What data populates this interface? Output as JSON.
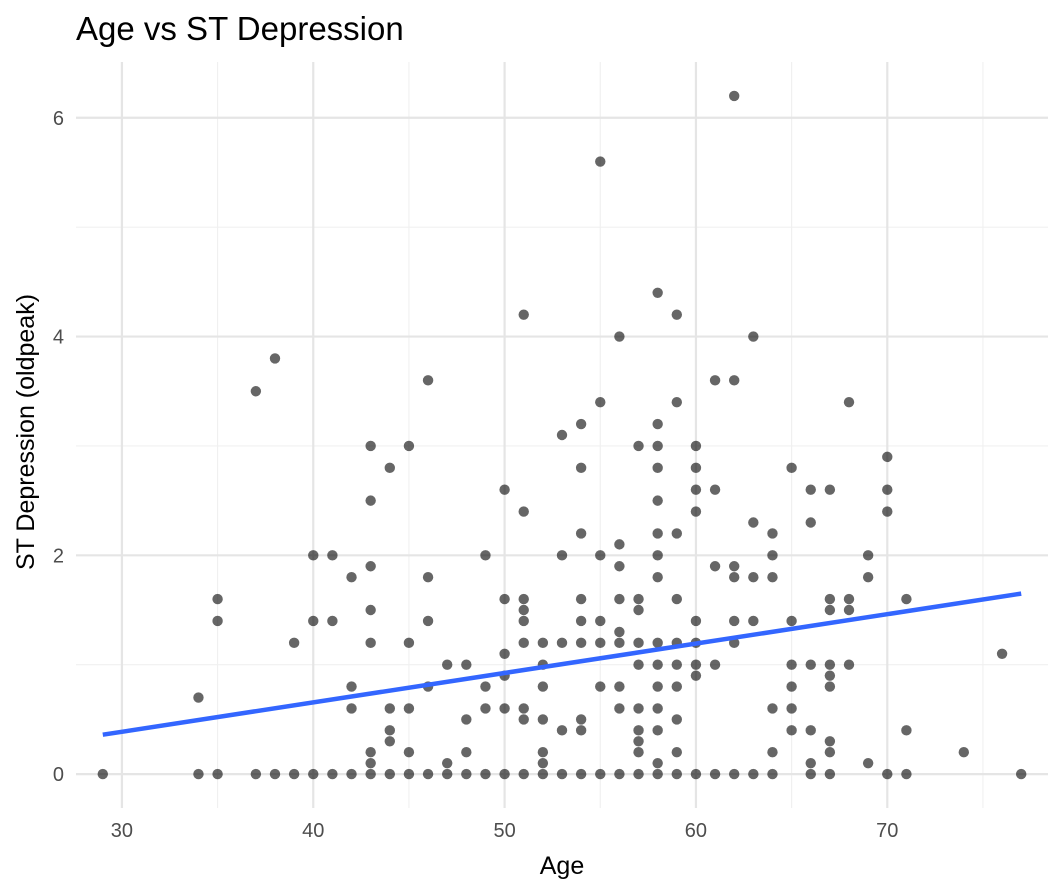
{
  "chart_data": {
    "type": "scatter",
    "title": "Age vs ST Depression",
    "xlabel": "Age",
    "ylabel": "ST Depression (oldpeak)",
    "xlim": [
      27.6,
      78.4
    ],
    "ylim": [
      -0.31,
      6.51
    ],
    "x_ticks": [
      30,
      40,
      50,
      60,
      70
    ],
    "y_ticks": [
      0,
      2,
      4,
      6
    ],
    "x_minor_ticks": [
      35,
      45,
      55,
      65,
      75
    ],
    "y_minor_ticks": [
      1,
      3,
      5
    ],
    "grid": true,
    "legend": "none",
    "point_color": "#000000",
    "point_alpha": 0.6,
    "trend_color": "#3366FF",
    "trend_line": {
      "type": "linear",
      "x": [
        29,
        77
      ],
      "y": [
        0.36,
        1.65
      ]
    },
    "points": [
      [
        29,
        0
      ],
      [
        34,
        0
      ],
      [
        35,
        0
      ],
      [
        37,
        0
      ],
      [
        38,
        0
      ],
      [
        39,
        0
      ],
      [
        40,
        0
      ],
      [
        41,
        0
      ],
      [
        42,
        0
      ],
      [
        43,
        0
      ],
      [
        44,
        0
      ],
      [
        45,
        0
      ],
      [
        46,
        0
      ],
      [
        47,
        0
      ],
      [
        48,
        0
      ],
      [
        49,
        0
      ],
      [
        50,
        0
      ],
      [
        51,
        0
      ],
      [
        52,
        0
      ],
      [
        53,
        0
      ],
      [
        54,
        0
      ],
      [
        55,
        0
      ],
      [
        56,
        0
      ],
      [
        57,
        0
      ],
      [
        58,
        0
      ],
      [
        59,
        0
      ],
      [
        60,
        0
      ],
      [
        61,
        0
      ],
      [
        62,
        0
      ],
      [
        63,
        0
      ],
      [
        64,
        0
      ],
      [
        66,
        0
      ],
      [
        67,
        0
      ],
      [
        70,
        0
      ],
      [
        71,
        0
      ],
      [
        77,
        0
      ],
      [
        34,
        0.7
      ],
      [
        35,
        1.6
      ],
      [
        35,
        1.4
      ],
      [
        37,
        3.5
      ],
      [
        38,
        3.8
      ],
      [
        39,
        1.2
      ],
      [
        40,
        2.0
      ],
      [
        40,
        1.4
      ],
      [
        41,
        2.0
      ],
      [
        41,
        1.4
      ],
      [
        42,
        1.8
      ],
      [
        42,
        0.8
      ],
      [
        42,
        0.6
      ],
      [
        43,
        3.0
      ],
      [
        43,
        2.5
      ],
      [
        43,
        1.9
      ],
      [
        43,
        1.5
      ],
      [
        43,
        1.2
      ],
      [
        43,
        0.2
      ],
      [
        43,
        0.1
      ],
      [
        44,
        2.8
      ],
      [
        44,
        0.6
      ],
      [
        44,
        0.4
      ],
      [
        44,
        0.3
      ],
      [
        45,
        3.0
      ],
      [
        45,
        1.2
      ],
      [
        45,
        0.6
      ],
      [
        45,
        0.2
      ],
      [
        46,
        3.6
      ],
      [
        46,
        1.8
      ],
      [
        46,
        1.4
      ],
      [
        46,
        0.8
      ],
      [
        47,
        1.0
      ],
      [
        47,
        0.1
      ],
      [
        48,
        1.0
      ],
      [
        48,
        0.5
      ],
      [
        48,
        0.2
      ],
      [
        49,
        2.0
      ],
      [
        49,
        0.8
      ],
      [
        49,
        0.6
      ],
      [
        50,
        2.6
      ],
      [
        50,
        1.6
      ],
      [
        50,
        1.1
      ],
      [
        50,
        0.9
      ],
      [
        50,
        0.6
      ],
      [
        51,
        4.2
      ],
      [
        51,
        2.4
      ],
      [
        51,
        1.6
      ],
      [
        51,
        1.5
      ],
      [
        51,
        1.4
      ],
      [
        51,
        1.2
      ],
      [
        51,
        0.6
      ],
      [
        51,
        0.5
      ],
      [
        52,
        1.2
      ],
      [
        52,
        1.0
      ],
      [
        52,
        0.8
      ],
      [
        52,
        0.5
      ],
      [
        52,
        0.2
      ],
      [
        52,
        0.1
      ],
      [
        53,
        3.1
      ],
      [
        53,
        2.0
      ],
      [
        53,
        1.2
      ],
      [
        53,
        0.4
      ],
      [
        54,
        3.2
      ],
      [
        54,
        2.8
      ],
      [
        54,
        2.2
      ],
      [
        54,
        1.6
      ],
      [
        54,
        1.4
      ],
      [
        54,
        1.2
      ],
      [
        54,
        0.5
      ],
      [
        54,
        0.4
      ],
      [
        55,
        5.6
      ],
      [
        55,
        3.4
      ],
      [
        55,
        2.0
      ],
      [
        55,
        1.4
      ],
      [
        55,
        1.2
      ],
      [
        55,
        0.8
      ],
      [
        56,
        4.0
      ],
      [
        56,
        2.1
      ],
      [
        56,
        1.9
      ],
      [
        56,
        1.6
      ],
      [
        56,
        1.3
      ],
      [
        56,
        1.2
      ],
      [
        56,
        0.8
      ],
      [
        56,
        0.6
      ],
      [
        57,
        3.0
      ],
      [
        57,
        1.6
      ],
      [
        57,
        1.5
      ],
      [
        57,
        1.2
      ],
      [
        57,
        1.0
      ],
      [
        57,
        0.6
      ],
      [
        57,
        0.4
      ],
      [
        57,
        0.3
      ],
      [
        57,
        0.2
      ],
      [
        58,
        4.4
      ],
      [
        58,
        3.2
      ],
      [
        58,
        3.0
      ],
      [
        58,
        2.8
      ],
      [
        58,
        2.5
      ],
      [
        58,
        2.2
      ],
      [
        58,
        2.0
      ],
      [
        58,
        1.8
      ],
      [
        58,
        1.2
      ],
      [
        58,
        1.0
      ],
      [
        58,
        0.8
      ],
      [
        58,
        0.6
      ],
      [
        58,
        0.4
      ],
      [
        58,
        0.1
      ],
      [
        59,
        4.2
      ],
      [
        59,
        3.4
      ],
      [
        59,
        2.2
      ],
      [
        59,
        1.6
      ],
      [
        59,
        1.2
      ],
      [
        59,
        1.0
      ],
      [
        59,
        0.8
      ],
      [
        59,
        0.5
      ],
      [
        59,
        0.2
      ],
      [
        60,
        3.0
      ],
      [
        60,
        2.8
      ],
      [
        60,
        2.6
      ],
      [
        60,
        2.4
      ],
      [
        60,
        1.4
      ],
      [
        60,
        1.2
      ],
      [
        60,
        1.0
      ],
      [
        60,
        0.9
      ],
      [
        61,
        3.6
      ],
      [
        61,
        2.6
      ],
      [
        61,
        1.9
      ],
      [
        61,
        1.0
      ],
      [
        62,
        6.2
      ],
      [
        62,
        3.6
      ],
      [
        62,
        1.9
      ],
      [
        62,
        1.8
      ],
      [
        62,
        1.4
      ],
      [
        62,
        1.2
      ],
      [
        63,
        4.0
      ],
      [
        63,
        2.3
      ],
      [
        63,
        1.8
      ],
      [
        63,
        1.4
      ],
      [
        64,
        2.2
      ],
      [
        64,
        2.0
      ],
      [
        64,
        1.8
      ],
      [
        64,
        0.6
      ],
      [
        64,
        0.2
      ],
      [
        65,
        2.8
      ],
      [
        65,
        1.4
      ],
      [
        65,
        1.0
      ],
      [
        65,
        0.8
      ],
      [
        65,
        0.6
      ],
      [
        65,
        0.4
      ],
      [
        66,
        2.6
      ],
      [
        66,
        2.3
      ],
      [
        66,
        1.0
      ],
      [
        66,
        0.4
      ],
      [
        66,
        0.1
      ],
      [
        67,
        2.6
      ],
      [
        67,
        1.6
      ],
      [
        67,
        1.5
      ],
      [
        67,
        1.0
      ],
      [
        67,
        0.9
      ],
      [
        67,
        0.8
      ],
      [
        67,
        0.3
      ],
      [
        67,
        0.2
      ],
      [
        68,
        3.4
      ],
      [
        68,
        1.6
      ],
      [
        68,
        1.5
      ],
      [
        68,
        1.0
      ],
      [
        69,
        2.0
      ],
      [
        69,
        1.8
      ],
      [
        69,
        0.1
      ],
      [
        70,
        2.9
      ],
      [
        70,
        2.6
      ],
      [
        70,
        2.4
      ],
      [
        71,
        1.6
      ],
      [
        71,
        0.4
      ],
      [
        74,
        0.2
      ],
      [
        76,
        1.1
      ]
    ]
  }
}
